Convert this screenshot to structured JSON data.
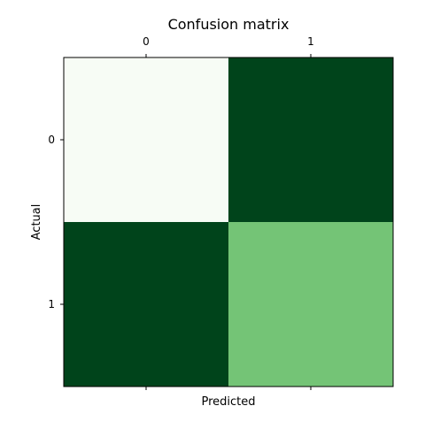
{
  "chart_data": {
    "type": "heatmap",
    "title": "Confusion matrix",
    "xlabel": "Predicted",
    "ylabel": "Actual",
    "x_categories": [
      "0",
      "1"
    ],
    "y_categories": [
      "0",
      "1"
    ],
    "colormap": "Greens",
    "cells": [
      {
        "row": "0",
        "col": "0",
        "color": "#f7fcf5"
      },
      {
        "row": "0",
        "col": "1",
        "color": "#00441b"
      },
      {
        "row": "1",
        "col": "0",
        "color": "#00441b"
      },
      {
        "row": "1",
        "col": "1",
        "color": "#74c476"
      }
    ],
    "grid": false,
    "xtick_position": "top",
    "legend": "none"
  }
}
